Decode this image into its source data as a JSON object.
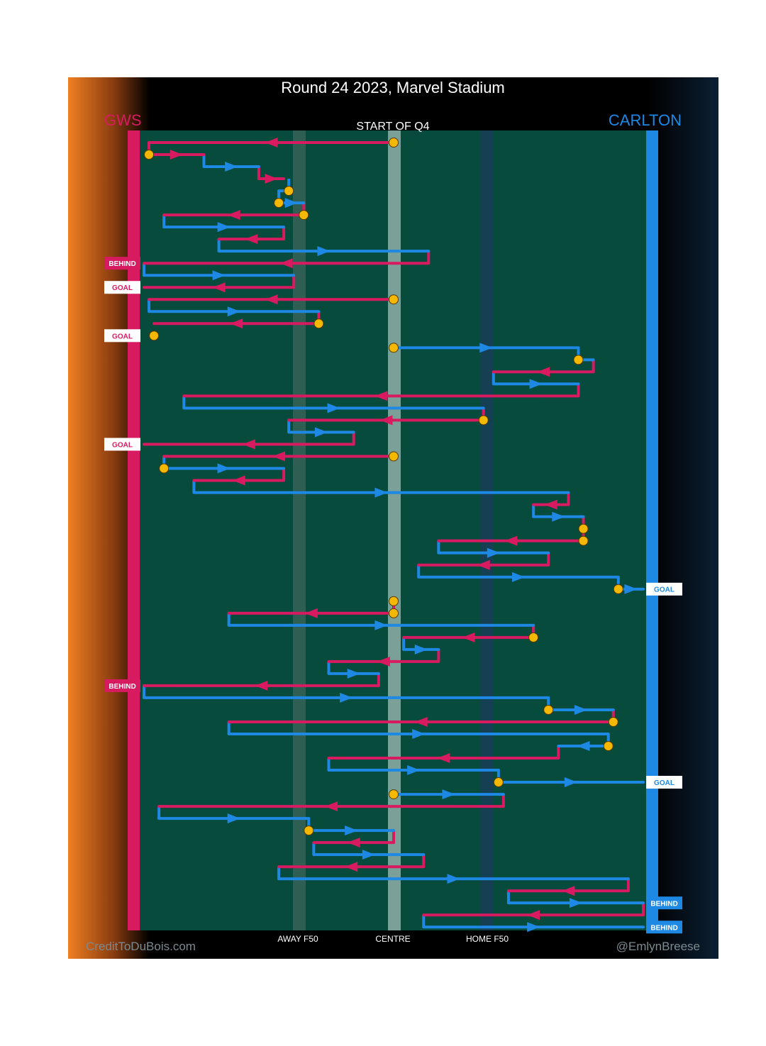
{
  "chart_data": {
    "type": "flow",
    "title": "Round 24 2023, Marvel Stadium",
    "subtitle": "START OF Q4",
    "home_team": {
      "name": "GWS",
      "color": "#d81b60"
    },
    "away_team": {
      "name": "CARLTON",
      "color": "#1e88e5"
    },
    "axis_labels": [
      "AWAY F50",
      "CENTRE",
      "HOME F50"
    ],
    "axis_positions": [
      0.32,
      0.5,
      0.68
    ],
    "x_domain_note": "0 = GWS goal line, 1 = Carlton goal line",
    "credits_left": "CreditToDuBois.com",
    "credits_right": "@EmlynBreese",
    "colors": {
      "gws": "#d81b60",
      "carlton": "#1e88e5",
      "ground": "#064b3c",
      "turnover": "#f5b800"
    },
    "row_count": 65,
    "segments": [
      {
        "team": "gws",
        "row": 0,
        "from": 0.5,
        "to": 0.01
      },
      {
        "team": "gws",
        "row": 1,
        "from": 0.01,
        "to": 0.12
      },
      {
        "team": "carlton",
        "row": 2,
        "from": 0.12,
        "to": 0.23
      },
      {
        "team": "gws",
        "row": 3,
        "from": 0.23,
        "to": 0.28
      },
      {
        "team": "carlton",
        "row": 4,
        "from": 0.29,
        "to": 0.27
      },
      {
        "team": "carlton",
        "row": 5,
        "from": 0.27,
        "to": 0.32
      },
      {
        "team": "gws",
        "row": 6,
        "from": 0.32,
        "to": 0.04
      },
      {
        "team": "carlton",
        "row": 7,
        "from": 0.04,
        "to": 0.28
      },
      {
        "team": "gws",
        "row": 8,
        "from": 0.28,
        "to": 0.15
      },
      {
        "team": "carlton",
        "row": 9,
        "from": 0.15,
        "to": 0.57
      },
      {
        "team": "gws",
        "row": 10,
        "from": 0.57,
        "to": 0.0
      },
      {
        "team": "carlton",
        "row": 11,
        "from": 0.0,
        "to": 0.3
      },
      {
        "team": "gws",
        "row": 12,
        "from": 0.3,
        "to": 0.0
      },
      {
        "team": "gws",
        "row": 13,
        "from": 0.5,
        "to": 0.01
      },
      {
        "team": "carlton",
        "row": 14,
        "from": 0.01,
        "to": 0.35
      },
      {
        "team": "gws",
        "row": 15,
        "from": 0.35,
        "to": 0.02
      },
      {
        "team": "carlton",
        "row": 17,
        "from": 0.5,
        "to": 0.87
      },
      {
        "team": "carlton",
        "row": 18,
        "from": 0.87,
        "to": 0.9
      },
      {
        "team": "gws",
        "row": 19,
        "from": 0.9,
        "to": 0.7
      },
      {
        "team": "carlton",
        "row": 20,
        "from": 0.7,
        "to": 0.87
      },
      {
        "team": "gws",
        "row": 21,
        "from": 0.87,
        "to": 0.08
      },
      {
        "team": "carlton",
        "row": 22,
        "from": 0.08,
        "to": 0.68
      },
      {
        "team": "gws",
        "row": 23,
        "from": 0.68,
        "to": 0.29
      },
      {
        "team": "carlton",
        "row": 24,
        "from": 0.29,
        "to": 0.42
      },
      {
        "team": "gws",
        "row": 25,
        "from": 0.42,
        "to": 0.0
      },
      {
        "team": "gws",
        "row": 26,
        "from": 0.5,
        "to": 0.04
      },
      {
        "team": "carlton",
        "row": 27,
        "from": 0.04,
        "to": 0.28
      },
      {
        "team": "gws",
        "row": 28,
        "from": 0.28,
        "to": 0.1
      },
      {
        "team": "carlton",
        "row": 29,
        "from": 0.1,
        "to": 0.85
      },
      {
        "team": "gws",
        "row": 30,
        "from": 0.85,
        "to": 0.78
      },
      {
        "team": "carlton",
        "row": 31,
        "from": 0.78,
        "to": 0.88
      },
      {
        "team": "gws",
        "row": 32,
        "from": 0.88,
        "to": 0.88
      },
      {
        "team": "gws",
        "row": 33,
        "from": 0.88,
        "to": 0.59
      },
      {
        "team": "carlton",
        "row": 34,
        "from": 0.59,
        "to": 0.81
      },
      {
        "team": "gws",
        "row": 35,
        "from": 0.81,
        "to": 0.55
      },
      {
        "team": "carlton",
        "row": 36,
        "from": 0.55,
        "to": 0.95
      },
      {
        "team": "carlton",
        "row": 37,
        "from": 0.95,
        "to": 1.0
      },
      {
        "team": "carlton",
        "row": 38,
        "from": 0.5,
        "to": 0.5
      },
      {
        "team": "gws",
        "row": 39,
        "from": 0.5,
        "to": 0.17
      },
      {
        "team": "carlton",
        "row": 40,
        "from": 0.17,
        "to": 0.78
      },
      {
        "team": "gws",
        "row": 41,
        "from": 0.78,
        "to": 0.52
      },
      {
        "team": "carlton",
        "row": 42,
        "from": 0.52,
        "to": 0.59
      },
      {
        "team": "gws",
        "row": 43,
        "from": 0.59,
        "to": 0.37
      },
      {
        "team": "carlton",
        "row": 44,
        "from": 0.37,
        "to": 0.47
      },
      {
        "team": "gws",
        "row": 45,
        "from": 0.47,
        "to": 0.0
      },
      {
        "team": "carlton",
        "row": 46,
        "from": 0.0,
        "to": 0.81
      },
      {
        "team": "carlton",
        "row": 47,
        "from": 0.81,
        "to": 0.94
      },
      {
        "team": "gws",
        "row": 48,
        "from": 0.94,
        "to": 0.17
      },
      {
        "team": "carlton",
        "row": 49,
        "from": 0.17,
        "to": 0.93
      },
      {
        "team": "carlton",
        "row": 50,
        "from": 0.93,
        "to": 0.83
      },
      {
        "team": "gws",
        "row": 51,
        "from": 0.83,
        "to": 0.37
      },
      {
        "team": "carlton",
        "row": 52,
        "from": 0.37,
        "to": 0.71
      },
      {
        "team": "carlton",
        "row": 53,
        "from": 0.71,
        "to": 1.0
      },
      {
        "team": "carlton",
        "row": 54,
        "from": 0.5,
        "to": 0.72
      },
      {
        "team": "gws",
        "row": 55,
        "from": 0.72,
        "to": 0.03
      },
      {
        "team": "carlton",
        "row": 56,
        "from": 0.03,
        "to": 0.33
      },
      {
        "team": "carlton",
        "row": 57,
        "from": 0.33,
        "to": 0.5
      },
      {
        "team": "gws",
        "row": 58,
        "from": 0.5,
        "to": 0.34
      },
      {
        "team": "carlton",
        "row": 59,
        "from": 0.34,
        "to": 0.56
      },
      {
        "team": "gws",
        "row": 60,
        "from": 0.56,
        "to": 0.27
      },
      {
        "team": "carlton",
        "row": 61,
        "from": 0.27,
        "to": 0.97
      },
      {
        "team": "gws",
        "row": 62,
        "from": 0.97,
        "to": 0.73
      },
      {
        "team": "carlton",
        "row": 63,
        "from": 0.73,
        "to": 1.0
      },
      {
        "team": "gws",
        "row": 64,
        "from": 1.0,
        "to": 0.56
      },
      {
        "team": "carlton",
        "row": 65,
        "from": 0.56,
        "to": 1.0
      }
    ],
    "turnovers": [
      {
        "row": 0,
        "x": 0.5
      },
      {
        "row": 1,
        "x": 0.01
      },
      {
        "row": 4,
        "x": 0.29
      },
      {
        "row": 5,
        "x": 0.27
      },
      {
        "row": 6,
        "x": 0.32
      },
      {
        "row": 13,
        "x": 0.5
      },
      {
        "row": 15,
        "x": 0.35
      },
      {
        "row": 16,
        "x": 0.02
      },
      {
        "row": 17,
        "x": 0.5
      },
      {
        "row": 18,
        "x": 0.87
      },
      {
        "row": 23,
        "x": 0.68
      },
      {
        "row": 26,
        "x": 0.5
      },
      {
        "row": 27,
        "x": 0.04
      },
      {
        "row": 32,
        "x": 0.88
      },
      {
        "row": 33,
        "x": 0.88
      },
      {
        "row": 37,
        "x": 0.95
      },
      {
        "row": 38,
        "x": 0.5
      },
      {
        "row": 39,
        "x": 0.5
      },
      {
        "row": 41,
        "x": 0.78
      },
      {
        "row": 47,
        "x": 0.81
      },
      {
        "row": 48,
        "x": 0.94
      },
      {
        "row": 50,
        "x": 0.93
      },
      {
        "row": 53,
        "x": 0.71
      },
      {
        "row": 54,
        "x": 0.5
      },
      {
        "row": 57,
        "x": 0.33
      }
    ],
    "scores": [
      {
        "row": 10,
        "team": "gws",
        "label": "BEHIND"
      },
      {
        "row": 12,
        "team": "gws",
        "label": "GOAL"
      },
      {
        "row": 16,
        "team": "gws",
        "label": "GOAL"
      },
      {
        "row": 25,
        "team": "gws",
        "label": "GOAL"
      },
      {
        "row": 37,
        "team": "carlton",
        "label": "GOAL"
      },
      {
        "row": 45,
        "team": "gws",
        "label": "BEHIND"
      },
      {
        "row": 53,
        "team": "carlton",
        "label": "GOAL"
      },
      {
        "row": 63,
        "team": "carlton",
        "label": "BEHIND"
      },
      {
        "row": 65,
        "team": "carlton",
        "label": "BEHIND"
      }
    ]
  }
}
